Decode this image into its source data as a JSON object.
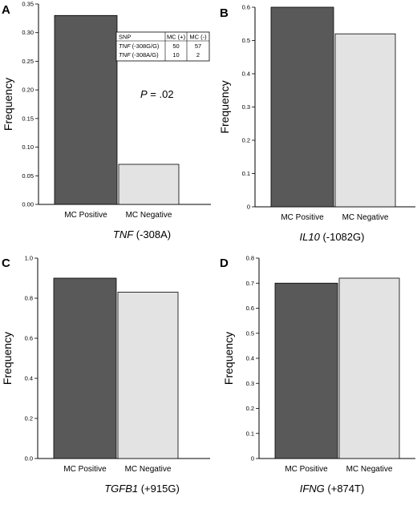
{
  "colors": {
    "mc_positive": "#595959",
    "mc_negative": "#e3e3e3",
    "stroke": "#000000"
  },
  "chart_data": [
    {
      "type": "bar",
      "panel": "A",
      "categories": [
        "MC Positive",
        "MC Negative"
      ],
      "values": [
        0.33,
        0.07
      ],
      "ylim": [
        0,
        0.35
      ],
      "yticks": [
        "0.00",
        "0.05",
        "0.10",
        "0.15",
        "0.20",
        "0.25",
        "0.30",
        "0.35"
      ],
      "ylabel": "Frequency",
      "gene": "TNF",
      "variant": " (-308A)",
      "inset_table": {
        "header": [
          "SNP",
          "MC (+)",
          "MC (-)"
        ],
        "rows": [
          {
            "gene": "TNF",
            "allele": " (-308G/G)",
            "mc_pos": "50",
            "mc_neg": "57"
          },
          {
            "gene": "TNF",
            "allele": " (-308A/G)",
            "mc_pos": "10",
            "mc_neg": "2"
          }
        ]
      },
      "p_label": "P",
      "p_value": " = .02"
    },
    {
      "type": "bar",
      "panel": "B",
      "categories": [
        "MC Positive",
        "MC Negative"
      ],
      "values": [
        0.6,
        0.52
      ],
      "ylim": [
        0,
        0.6
      ],
      "yticks": [
        "0",
        "0.1",
        "0.2",
        "0.3",
        "0.4",
        "0.5",
        "0.6"
      ],
      "ylabel": "Frequency",
      "gene": "IL10",
      "variant": " (-1082G)"
    },
    {
      "type": "bar",
      "panel": "C",
      "categories": [
        "MC Positive",
        "MC Negative"
      ],
      "values": [
        0.9,
        0.83
      ],
      "ylim": [
        0,
        1.0
      ],
      "yticks": [
        "0.0",
        "0.2",
        "0.4",
        "0.6",
        "0.8",
        "1.0"
      ],
      "ylabel": "Frequency",
      "gene": "TGFB1",
      "variant": " (+915G)"
    },
    {
      "type": "bar",
      "panel": "D",
      "categories": [
        "MC Positive",
        "MC Negative"
      ],
      "values": [
        0.7,
        0.72
      ],
      "ylim": [
        0,
        0.8
      ],
      "yticks": [
        "0",
        "0.1",
        "0.2",
        "0.3",
        "0.4",
        "0.5",
        "0.6",
        "0.7",
        "0.8"
      ],
      "ylabel": "Frequency",
      "gene": "IFNG",
      "variant": " (+874T)"
    }
  ]
}
